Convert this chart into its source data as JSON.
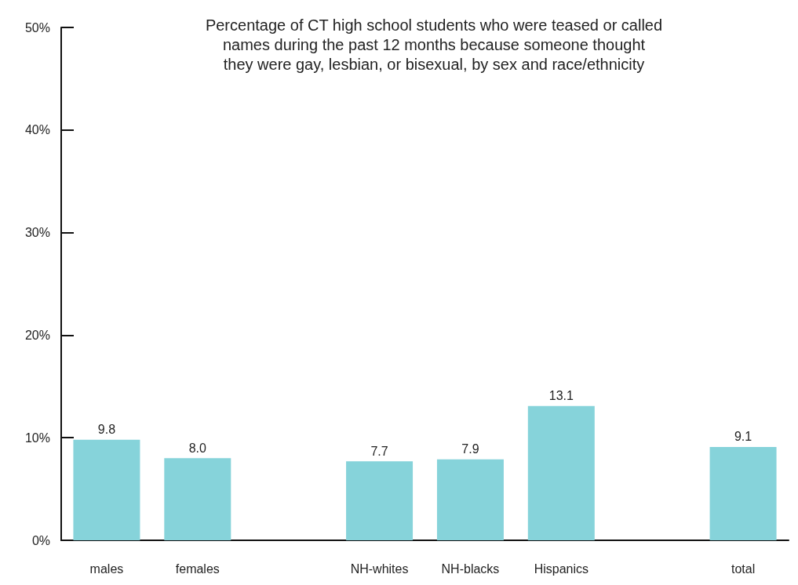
{
  "chart_data": {
    "type": "bar",
    "title": "Percentage of CT high school students who were teased or called\nnames during the past 12 months because someone thought\nthey were gay, lesbian, or bisexual, by sex and race/ethnicity",
    "categories": [
      "males",
      "females",
      null,
      "NH-whites",
      "NH-blacks",
      "Hispanics",
      null,
      "total"
    ],
    "values": [
      9.8,
      8.0,
      null,
      7.7,
      7.9,
      13.1,
      null,
      9.1
    ],
    "value_labels": [
      "9.8",
      "8.0",
      null,
      "7.7",
      "7.9",
      "13.1",
      null,
      "9.1"
    ],
    "color": "#86d3da",
    "ylim": [
      0,
      50
    ],
    "yticks": [
      {
        "value": 0,
        "label": "0%"
      },
      {
        "value": 10,
        "label": "10%"
      },
      {
        "value": 20,
        "label": "20%"
      },
      {
        "value": 30,
        "label": "30%"
      },
      {
        "value": 40,
        "label": "40%"
      },
      {
        "value": 50,
        "label": "50%"
      }
    ],
    "grid": false
  }
}
